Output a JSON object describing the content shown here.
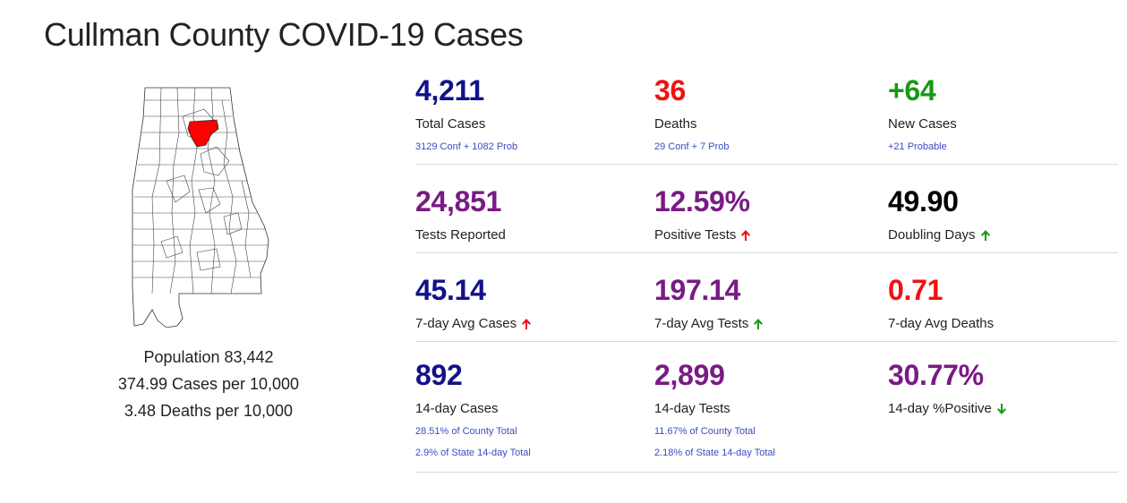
{
  "page": {
    "title": "Cullman County COVID-19 Cases"
  },
  "map": {
    "highlight_color": "#ff0000",
    "icon": "alabama-county-map"
  },
  "county_info": {
    "population": "Population 83,442",
    "cases_per_10k": "374.99 Cases per 10,000",
    "deaths_per_10k": "3.48 Deaths per 10,000"
  },
  "stats": {
    "total_cases": {
      "value": "4,211",
      "label": "Total Cases",
      "sub": "3129 Conf + 1082 Prob",
      "color": "#12128a"
    },
    "deaths": {
      "value": "36",
      "label": "Deaths",
      "sub": "29 Conf + 7 Prob",
      "color": "#f21010"
    },
    "new_cases": {
      "value": "+64",
      "label": "New Cases",
      "sub": "+21 Probable",
      "color": "#159a15"
    },
    "tests_reported": {
      "value": "24,851",
      "label": "Tests Reported",
      "color": "#7a1a84"
    },
    "positive_tests": {
      "value": "12.59%",
      "label": "Positive Tests",
      "trend": "up-red-arrow-icon",
      "color": "#7a1a84"
    },
    "doubling_days": {
      "value": "49.90",
      "label": "Doubling Days",
      "trend": "up-green-arrow-icon",
      "color": "#000000"
    },
    "avg7_cases": {
      "value": "45.14",
      "label": "7-day Avg Cases",
      "trend": "up-red-arrow-icon",
      "color": "#12128a"
    },
    "avg7_tests": {
      "value": "197.14",
      "label": "7-day Avg Tests",
      "trend": "up-green-arrow-icon",
      "color": "#7a1a84"
    },
    "avg7_deaths": {
      "value": "0.71",
      "label": "7-day Avg Deaths",
      "color": "#f21010"
    },
    "d14_cases": {
      "value": "892",
      "label": "14-day Cases",
      "sub": "28.51% of County Total",
      "sub2": "2.9% of State 14-day Total",
      "color": "#12128a"
    },
    "d14_tests": {
      "value": "2,899",
      "label": "14-day Tests",
      "sub": "11.67% of County Total",
      "sub2": "2.18% of State 14-day Total",
      "color": "#7a1a84"
    },
    "d14_positive": {
      "value": "30.77%",
      "label": "14-day %Positive",
      "trend": "down-green-arrow-icon",
      "color": "#7a1a84"
    }
  }
}
